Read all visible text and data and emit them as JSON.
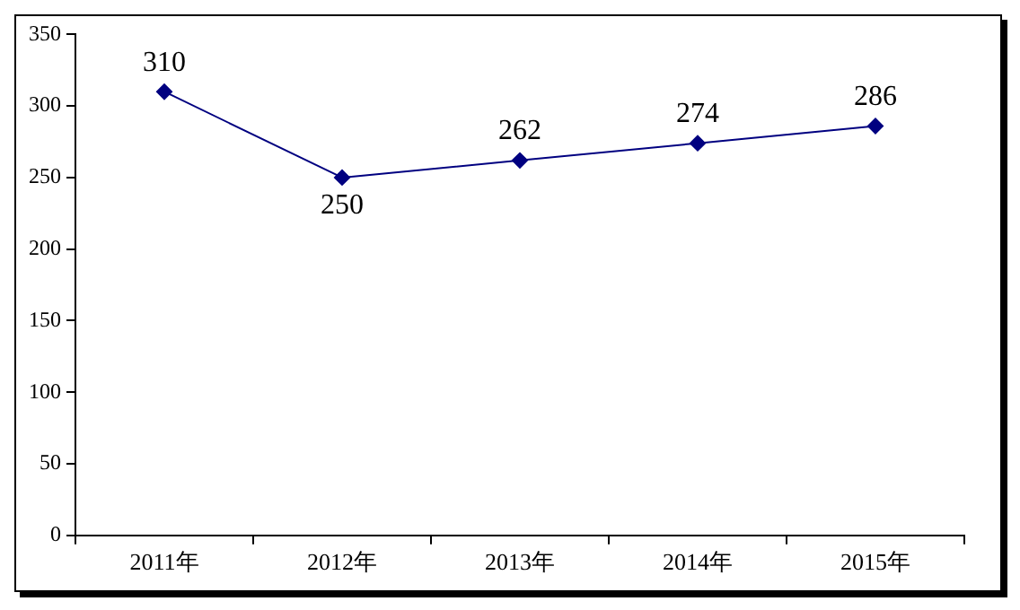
{
  "chart_data": {
    "type": "line",
    "categories": [
      "2011年",
      "2012年",
      "2013年",
      "2014年",
      "2015年"
    ],
    "series": [
      {
        "color": "#000080",
        "values": [
          310,
          250,
          262,
          274,
          286
        ]
      }
    ],
    "ylim": [
      0,
      350
    ],
    "yticks": [
      0,
      50,
      100,
      150,
      200,
      250,
      300,
      350
    ],
    "grid": false,
    "legend": false,
    "marker": "diamond",
    "line_style": "solid",
    "data_labels": true
  }
}
